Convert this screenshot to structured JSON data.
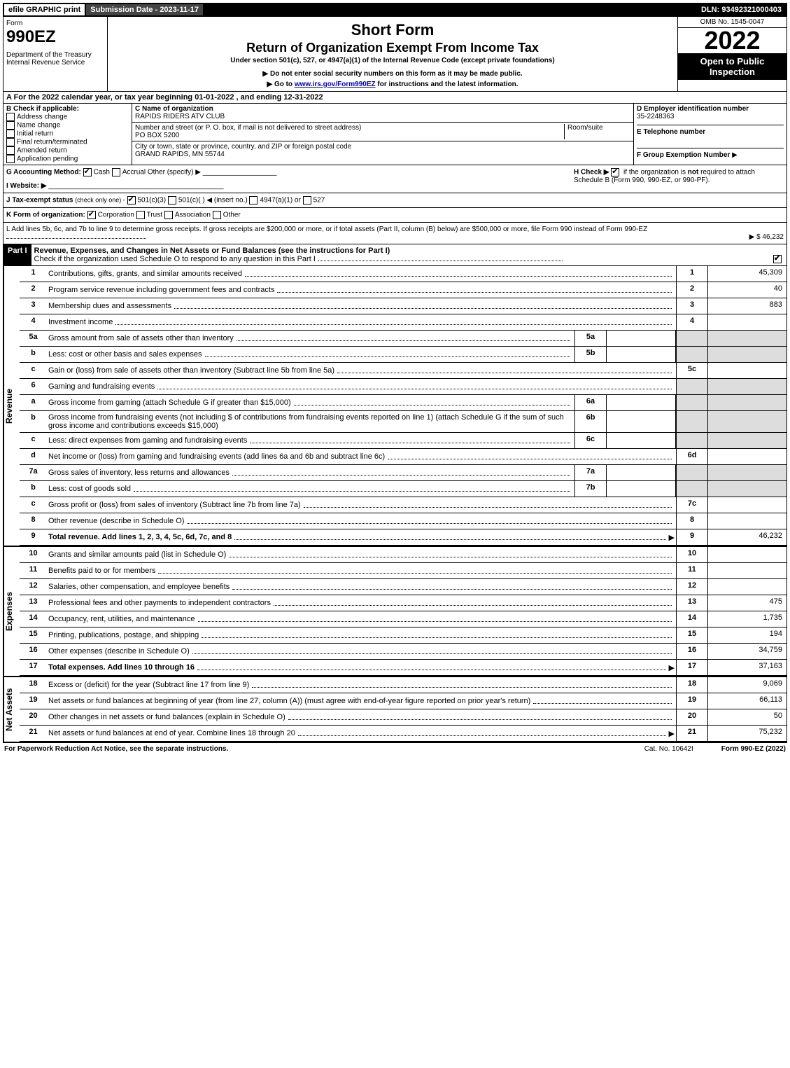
{
  "topbar": {
    "efile": "efile GRAPHIC print",
    "submission": "Submission Date - 2023-11-17",
    "dln": "DLN: 93492321000403"
  },
  "header": {
    "form_label": "Form",
    "form_no": "990EZ",
    "dept": "Department of the Treasury\nInternal Revenue Service",
    "title1": "Short Form",
    "title2": "Return of Organization Exempt From Income Tax",
    "subtitle": "Under section 501(c), 527, or 4947(a)(1) of the Internal Revenue Code (except private foundations)",
    "note1": "Do not enter social security numbers on this form as it may be made public.",
    "note2_pre": "Go to ",
    "note2_link": "www.irs.gov/Form990EZ",
    "note2_post": " for instructions and the latest information.",
    "omb": "OMB No. 1545-0047",
    "year": "2022",
    "badge": "Open to Public Inspection"
  },
  "sectionA": "A  For the 2022 calendar year, or tax year beginning 01-01-2022 , and ending 12-31-2022",
  "sectionB": {
    "label": "B  Check if applicable:",
    "items": [
      "Address change",
      "Name change",
      "Initial return",
      "Final return/terminated",
      "Amended return",
      "Application pending"
    ]
  },
  "sectionC": {
    "name_label": "C Name of organization",
    "name": "RAPIDS RIDERS ATV CLUB",
    "street_label": "Number and street (or P. O. box, if mail is not delivered to street address)",
    "room_label": "Room/suite",
    "street": "PO BOX 5200",
    "city_label": "City or town, state or province, country, and ZIP or foreign postal code",
    "city": "GRAND RAPIDS, MN  55744"
  },
  "sectionDE": {
    "d_label": "D Employer identification number",
    "ein": "35-2248363",
    "e_label": "E Telephone number",
    "f_label": "F Group Exemption Number",
    "f_arrow": "▶"
  },
  "rowG": {
    "label": "G Accounting Method:",
    "cash": "Cash",
    "accrual": "Accrual",
    "other": "Other (specify) ▶"
  },
  "rowH": {
    "label": "H  Check ▶",
    "text": "if the organization is ",
    "not": "not",
    "rest": " required to attach Schedule B (Form 990, 990-EZ, or 990-PF)."
  },
  "rowI": {
    "label": "I Website: ▶"
  },
  "rowJ": {
    "label": "J Tax-exempt status",
    "sub": "(check only one) -",
    "opt1": "501(c)(3)",
    "opt2": "501(c)(  ) ◀ (insert no.)",
    "opt3": "4947(a)(1) or",
    "opt4": "527"
  },
  "rowK": {
    "label": "K Form of organization:",
    "opts": [
      "Corporation",
      "Trust",
      "Association",
      "Other"
    ]
  },
  "rowL": {
    "text": "L Add lines 5b, 6c, and 7b to line 9 to determine gross receipts. If gross receipts are $200,000 or more, or if total assets (Part II, column (B) below) are $500,000 or more, file Form 990 instead of Form 990-EZ",
    "amount": "▶ $ 46,232"
  },
  "part1": {
    "header": "Part I",
    "title": "Revenue, Expenses, and Changes in Net Assets or Fund Balances (see the instructions for Part I)",
    "check_note": "Check if the organization used Schedule O to respond to any question in this Part I"
  },
  "revenue_label": "Revenue",
  "expenses_label": "Expenses",
  "netassets_label": "Net Assets",
  "lines": {
    "l1": {
      "n": "1",
      "d": "Contributions, gifts, grants, and similar amounts received",
      "rn": "1",
      "rv": "45,309"
    },
    "l2": {
      "n": "2",
      "d": "Program service revenue including government fees and contracts",
      "rn": "2",
      "rv": "40"
    },
    "l3": {
      "n": "3",
      "d": "Membership dues and assessments",
      "rn": "3",
      "rv": "883"
    },
    "l4": {
      "n": "4",
      "d": "Investment income",
      "rn": "4",
      "rv": ""
    },
    "l5a": {
      "n": "5a",
      "d": "Gross amount from sale of assets other than inventory",
      "mn": "5a"
    },
    "l5b": {
      "n": "b",
      "d": "Less: cost or other basis and sales expenses",
      "mn": "5b"
    },
    "l5c": {
      "n": "c",
      "d": "Gain or (loss) from sale of assets other than inventory (Subtract line 5b from line 5a)",
      "rn": "5c",
      "rv": ""
    },
    "l6": {
      "n": "6",
      "d": "Gaming and fundraising events"
    },
    "l6a": {
      "n": "a",
      "d": "Gross income from gaming (attach Schedule G if greater than $15,000)",
      "mn": "6a"
    },
    "l6b": {
      "n": "b",
      "d": "Gross income from fundraising events (not including $                    of contributions from fundraising events reported on line 1) (attach Schedule G if the sum of such gross income and contributions exceeds $15,000)",
      "mn": "6b"
    },
    "l6c": {
      "n": "c",
      "d": "Less: direct expenses from gaming and fundraising events",
      "mn": "6c"
    },
    "l6d": {
      "n": "d",
      "d": "Net income or (loss) from gaming and fundraising events (add lines 6a and 6b and subtract line 6c)",
      "rn": "6d",
      "rv": ""
    },
    "l7a": {
      "n": "7a",
      "d": "Gross sales of inventory, less returns and allowances",
      "mn": "7a"
    },
    "l7b": {
      "n": "b",
      "d": "Less: cost of goods sold",
      "mn": "7b"
    },
    "l7c": {
      "n": "c",
      "d": "Gross profit or (loss) from sales of inventory (Subtract line 7b from line 7a)",
      "rn": "7c",
      "rv": ""
    },
    "l8": {
      "n": "8",
      "d": "Other revenue (describe in Schedule O)",
      "rn": "8",
      "rv": ""
    },
    "l9": {
      "n": "9",
      "d": "Total revenue. Add lines 1, 2, 3, 4, 5c, 6d, 7c, and 8",
      "rn": "9",
      "rv": "46,232",
      "bold": true,
      "arrow": true
    },
    "l10": {
      "n": "10",
      "d": "Grants and similar amounts paid (list in Schedule O)",
      "rn": "10",
      "rv": ""
    },
    "l11": {
      "n": "11",
      "d": "Benefits paid to or for members",
      "rn": "11",
      "rv": ""
    },
    "l12": {
      "n": "12",
      "d": "Salaries, other compensation, and employee benefits",
      "rn": "12",
      "rv": ""
    },
    "l13": {
      "n": "13",
      "d": "Professional fees and other payments to independent contractors",
      "rn": "13",
      "rv": "475"
    },
    "l14": {
      "n": "14",
      "d": "Occupancy, rent, utilities, and maintenance",
      "rn": "14",
      "rv": "1,735"
    },
    "l15": {
      "n": "15",
      "d": "Printing, publications, postage, and shipping",
      "rn": "15",
      "rv": "194"
    },
    "l16": {
      "n": "16",
      "d": "Other expenses (describe in Schedule O)",
      "rn": "16",
      "rv": "34,759"
    },
    "l17": {
      "n": "17",
      "d": "Total expenses. Add lines 10 through 16",
      "rn": "17",
      "rv": "37,163",
      "bold": true,
      "arrow": true
    },
    "l18": {
      "n": "18",
      "d": "Excess or (deficit) for the year (Subtract line 17 from line 9)",
      "rn": "18",
      "rv": "9,069"
    },
    "l19": {
      "n": "19",
      "d": "Net assets or fund balances at beginning of year (from line 27, column (A)) (must agree with end-of-year figure reported on prior year's return)",
      "rn": "19",
      "rv": "66,113"
    },
    "l20": {
      "n": "20",
      "d": "Other changes in net assets or fund balances (explain in Schedule O)",
      "rn": "20",
      "rv": "50"
    },
    "l21": {
      "n": "21",
      "d": "Net assets or fund balances at end of year. Combine lines 18 through 20",
      "rn": "21",
      "rv": "75,232",
      "arrow": true
    }
  },
  "footer": {
    "left": "For Paperwork Reduction Act Notice, see the separate instructions.",
    "mid": "Cat. No. 10642I",
    "right_pre": "Form ",
    "right_bold": "990-EZ",
    "right_post": " (2022)"
  }
}
